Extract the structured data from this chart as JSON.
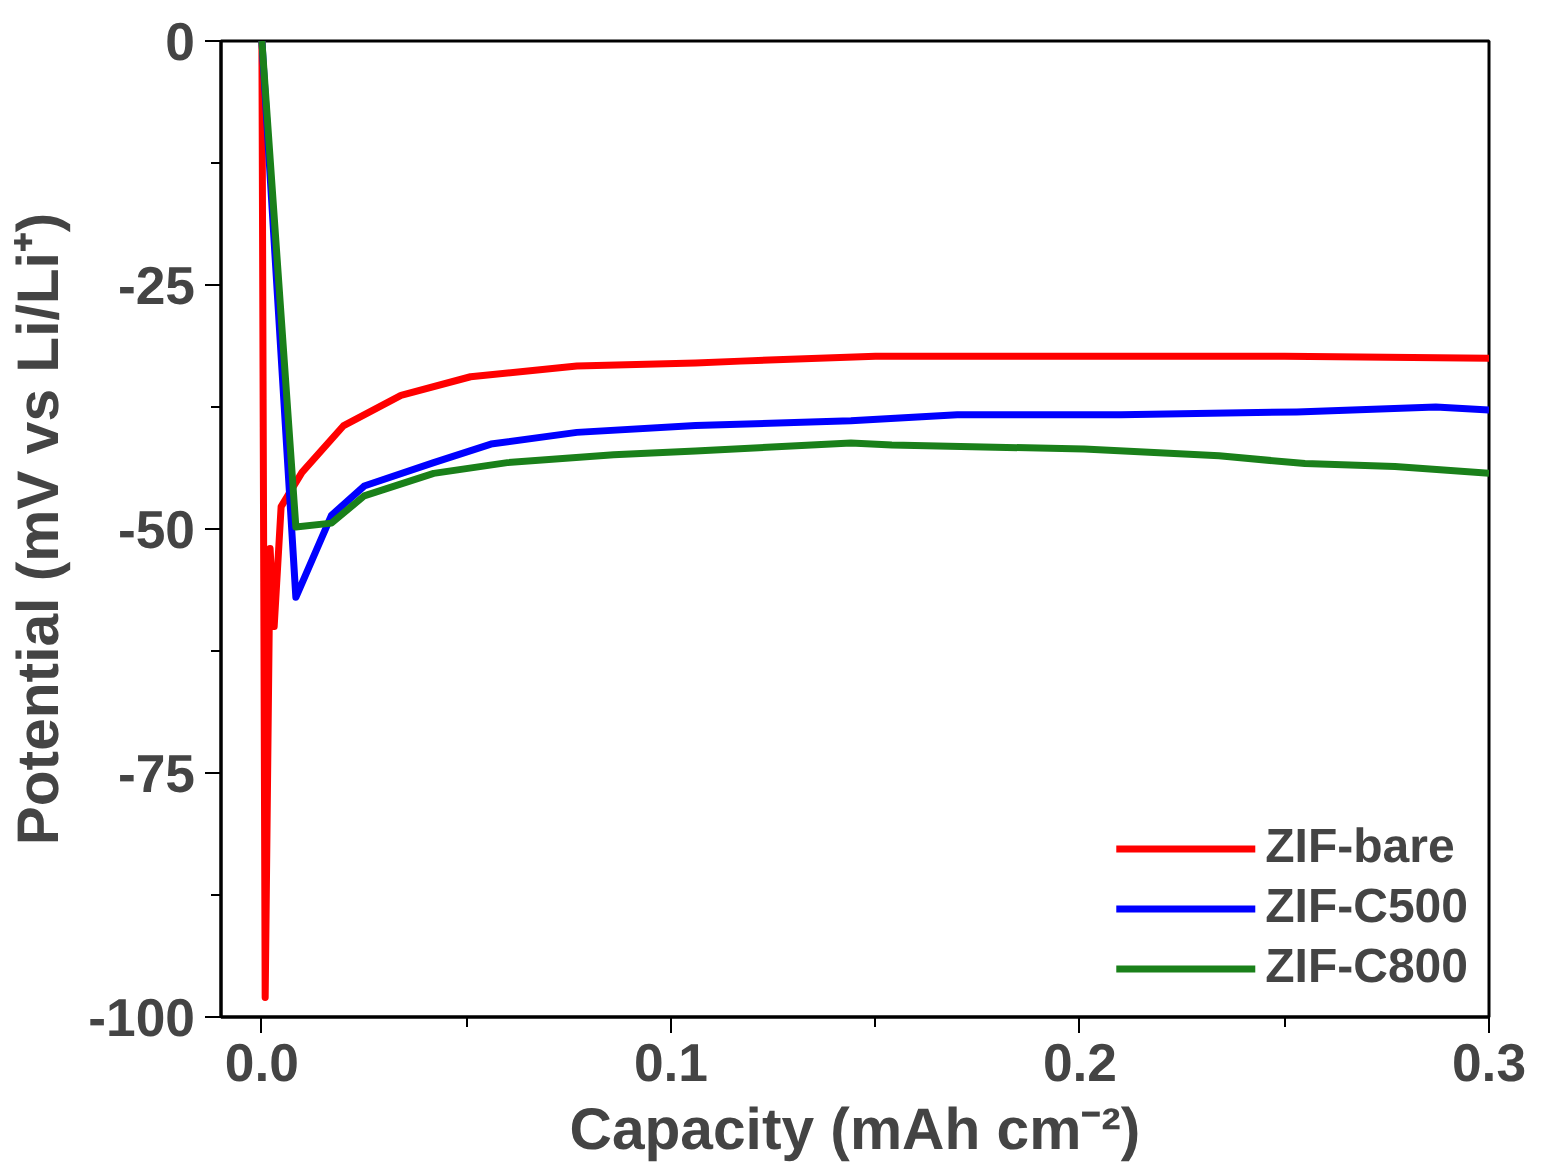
{
  "chart_data": {
    "type": "line",
    "xlabel": "Capacity (mAh cm⁻²)",
    "ylabel": "Potential (mV vs Li/Li⁺)",
    "xlim": [
      -0.01,
      0.3
    ],
    "ylim": [
      -100,
      0
    ],
    "xticks": [
      {
        "value": 0,
        "label": "0.0"
      },
      0.1,
      0.2,
      0.3
    ],
    "yticks": [
      -100,
      -75,
      -50,
      -25,
      0
    ],
    "grid": false,
    "legend": "bottom right",
    "line_style": "solid",
    "marker": "none",
    "series": [
      {
        "name": "ZIF-bare",
        "color": "#ff0000",
        "x": [
          0,
          0.0008,
          0.002,
          0.003,
          0.0047,
          0.0098,
          0.02,
          0.034,
          0.051,
          0.077,
          0.106,
          0.117,
          0.15,
          0.2,
          0.25,
          0.3
        ],
        "values": [
          0,
          -98,
          -52,
          -60,
          -47.7,
          -44.2,
          -39.4,
          -36.3,
          -34.4,
          -33.3,
          -33,
          -32.8,
          -32.3,
          -32.3,
          -32.3,
          -32.5
        ]
      },
      {
        "name": "ZIF-C500",
        "color": "#0000ff",
        "x": [
          0,
          0.0083,
          0.017,
          0.025,
          0.042,
          0.056,
          0.077,
          0.106,
          0.144,
          0.17,
          0.21,
          0.253,
          0.287,
          0.3
        ],
        "values": [
          0,
          -57,
          -48.6,
          -45.6,
          -43.2,
          -41.3,
          -40.1,
          -39.4,
          -38.9,
          -38.3,
          -38.3,
          -38,
          -37.5,
          -37.8
        ]
      },
      {
        "name": "ZIF-C800",
        "color": "#1a801a",
        "x": [
          0,
          0.0083,
          0.017,
          0.025,
          0.042,
          0.06,
          0.086,
          0.106,
          0.144,
          0.154,
          0.201,
          0.234,
          0.255,
          0.277,
          0.3
        ],
        "values": [
          0,
          -49.8,
          -49.4,
          -46.6,
          -44.3,
          -43.2,
          -42.4,
          -42,
          -41.2,
          -41.4,
          -41.8,
          -42.5,
          -43.3,
          -43.6,
          -44.3
        ]
      }
    ]
  }
}
